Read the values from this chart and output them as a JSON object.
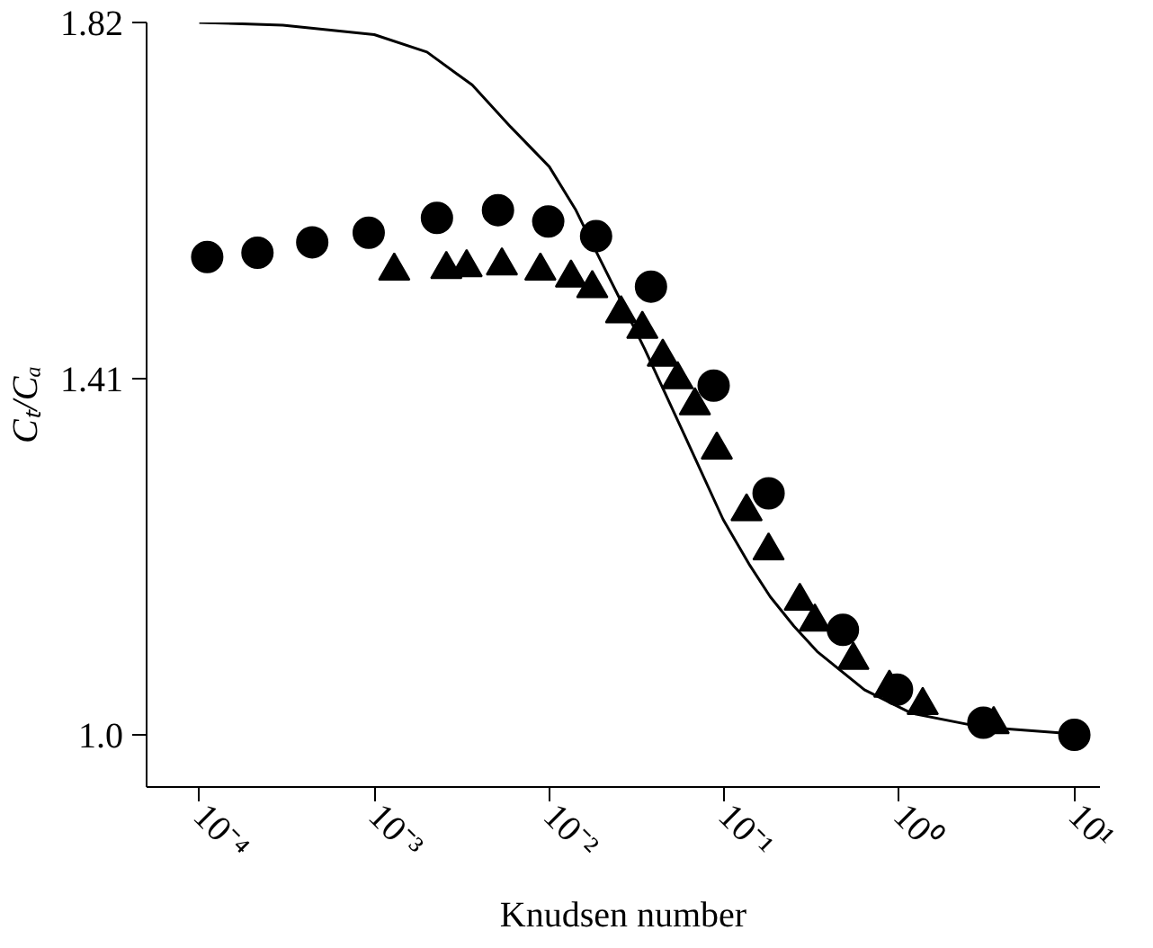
{
  "chart_data": {
    "type": "scatter",
    "xlabel": "Knudsen number",
    "ylabel": "Cₜ/Cₐ",
    "log": "x",
    "grid": false,
    "xlim": [
      5e-05,
      14
    ],
    "ylim": [
      0.94,
      1.82
    ],
    "xticks": [
      {
        "value": 0.0001,
        "label": "10⁻⁴"
      },
      {
        "value": 0.001,
        "label": "10⁻³"
      },
      {
        "value": 0.01,
        "label": "10⁻²"
      },
      {
        "value": 0.1,
        "label": "10⁻¹"
      },
      {
        "value": 1,
        "label": "10⁰"
      },
      {
        "value": 10,
        "label": "10¹"
      }
    ],
    "yticks": [
      {
        "value": 1.0,
        "label": "1.0"
      },
      1.41,
      1.82
    ],
    "series": [
      {
        "marker": "circle",
        "color": "#000000",
        "x": [
          0.000111,
          0.000215,
          0.000442,
          0.000929,
          0.00228,
          0.00509,
          0.00986,
          0.0185,
          0.0381,
          0.0869,
          0.179,
          0.476,
          0.97,
          3.02,
          10.0
        ],
        "values": [
          1.55,
          1.555,
          1.567,
          1.578,
          1.595,
          1.604,
          1.591,
          1.574,
          1.516,
          1.402,
          1.278,
          1.121,
          1.052,
          1.014,
          1.0
        ]
      },
      {
        "marker": "triangle",
        "color": "#000000",
        "x": [
          0.0013,
          0.00258,
          0.00337,
          0.00536,
          0.00889,
          0.0133,
          0.0176,
          0.0257,
          0.034,
          0.0445,
          0.0541,
          0.0679,
          0.0906,
          0.134,
          0.179,
          0.27,
          0.329,
          0.546,
          0.877,
          1.36,
          3.46
        ],
        "values": [
          1.534,
          1.536,
          1.538,
          1.54,
          1.534,
          1.526,
          1.514,
          1.485,
          1.467,
          1.435,
          1.409,
          1.379,
          1.328,
          1.257,
          1.212,
          1.154,
          1.13,
          1.086,
          1.054,
          1.034,
          1.012
        ]
      },
      {
        "type": "line",
        "line_style": "solid",
        "marker": "none",
        "color": "#000000",
        "x": [
          0.0001,
          0.0003,
          0.001,
          0.002,
          0.00363,
          0.006,
          0.01,
          0.0141,
          0.0191,
          0.026,
          0.0351,
          0.0589,
          0.0984,
          0.14,
          0.183,
          0.25,
          0.339,
          0.631,
          1.17,
          2.95,
          10.0
        ],
        "values": [
          1.82,
          1.817,
          1.806,
          1.786,
          1.748,
          1.7,
          1.654,
          1.605,
          1.551,
          1.497,
          1.444,
          1.346,
          1.248,
          1.195,
          1.159,
          1.125,
          1.096,
          1.052,
          1.025,
          1.009,
          1.001
        ]
      }
    ]
  }
}
